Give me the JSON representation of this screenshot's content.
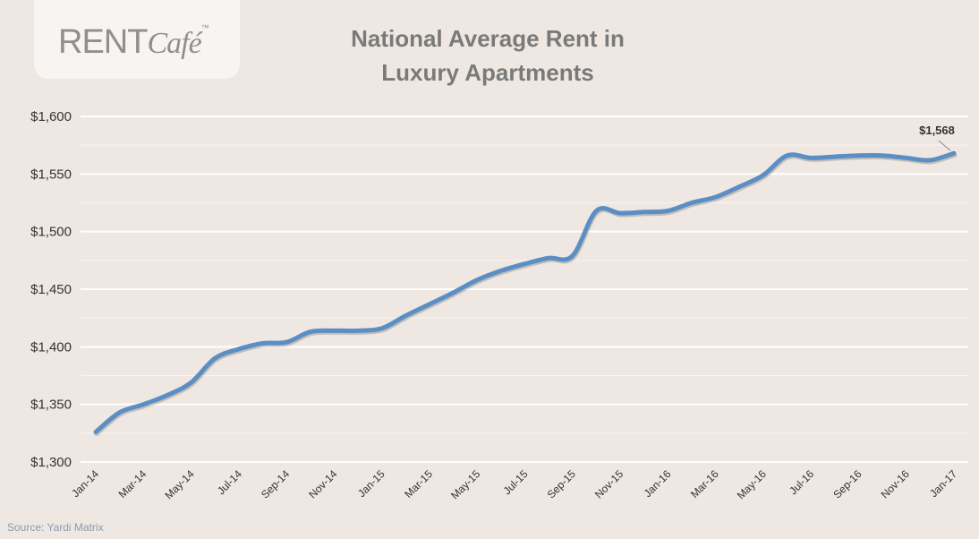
{
  "logo": {
    "text_rent": "RENT",
    "text_cafe": "Café",
    "tm": "™"
  },
  "source": "Source: Yardi Matrix",
  "colors": {
    "line": "#5b8ec4",
    "grid": "#ffffff",
    "background": "#efe8e2"
  },
  "chart_data": {
    "type": "line",
    "title": "National Average Rent in Luxury Apartments",
    "title_lines": [
      "National Average Rent in",
      "Luxury Apartments"
    ],
    "xlabel": "",
    "ylabel": "",
    "ylim": [
      1300,
      1600
    ],
    "yticks": [
      "$1,300",
      "$1,350",
      "$1,400",
      "$1,450",
      "$1,500",
      "$1,550",
      "$1,600"
    ],
    "ytick_values": [
      1300,
      1350,
      1400,
      1450,
      1500,
      1550,
      1600
    ],
    "xtick_labels": [
      "Jan-14",
      "Mar-14",
      "May-14",
      "Jul-14",
      "Sep-14",
      "Nov-14",
      "Jan-15",
      "Mar-15",
      "May-15",
      "Jul-15",
      "Sep-15",
      "Nov-15",
      "Jan-16",
      "Mar-16",
      "May-16",
      "Jul-16",
      "Sep-16",
      "Nov-16",
      "Jan-17"
    ],
    "x": [
      "Jan-14",
      "Feb-14",
      "Mar-14",
      "Apr-14",
      "May-14",
      "Jun-14",
      "Jul-14",
      "Aug-14",
      "Sep-14",
      "Oct-14",
      "Nov-14",
      "Dec-14",
      "Jan-15",
      "Feb-15",
      "Mar-15",
      "Apr-15",
      "May-15",
      "Jun-15",
      "Jul-15",
      "Aug-15",
      "Sep-15",
      "Oct-15",
      "Nov-15",
      "Dec-15",
      "Jan-16",
      "Feb-16",
      "Mar-16",
      "Apr-16",
      "May-16",
      "Jun-16",
      "Jul-16",
      "Aug-16",
      "Sep-16",
      "Oct-16",
      "Nov-16",
      "Dec-16",
      "Jan-17"
    ],
    "series": [
      {
        "name": "Average Rent",
        "values": [
          1326,
          1343,
          1350,
          1358,
          1369,
          1390,
          1398,
          1403,
          1404,
          1413,
          1414,
          1414,
          1416,
          1427,
          1437,
          1447,
          1458,
          1466,
          1472,
          1477,
          1479,
          1518,
          1516,
          1517,
          1518,
          1525,
          1530,
          1539,
          1549,
          1566,
          1564,
          1565,
          1566,
          1566,
          1564,
          1562,
          1568
        ]
      }
    ],
    "annotation": {
      "text": "$1,568",
      "at": "Jan-17"
    },
    "grid": true,
    "legend": "none"
  }
}
